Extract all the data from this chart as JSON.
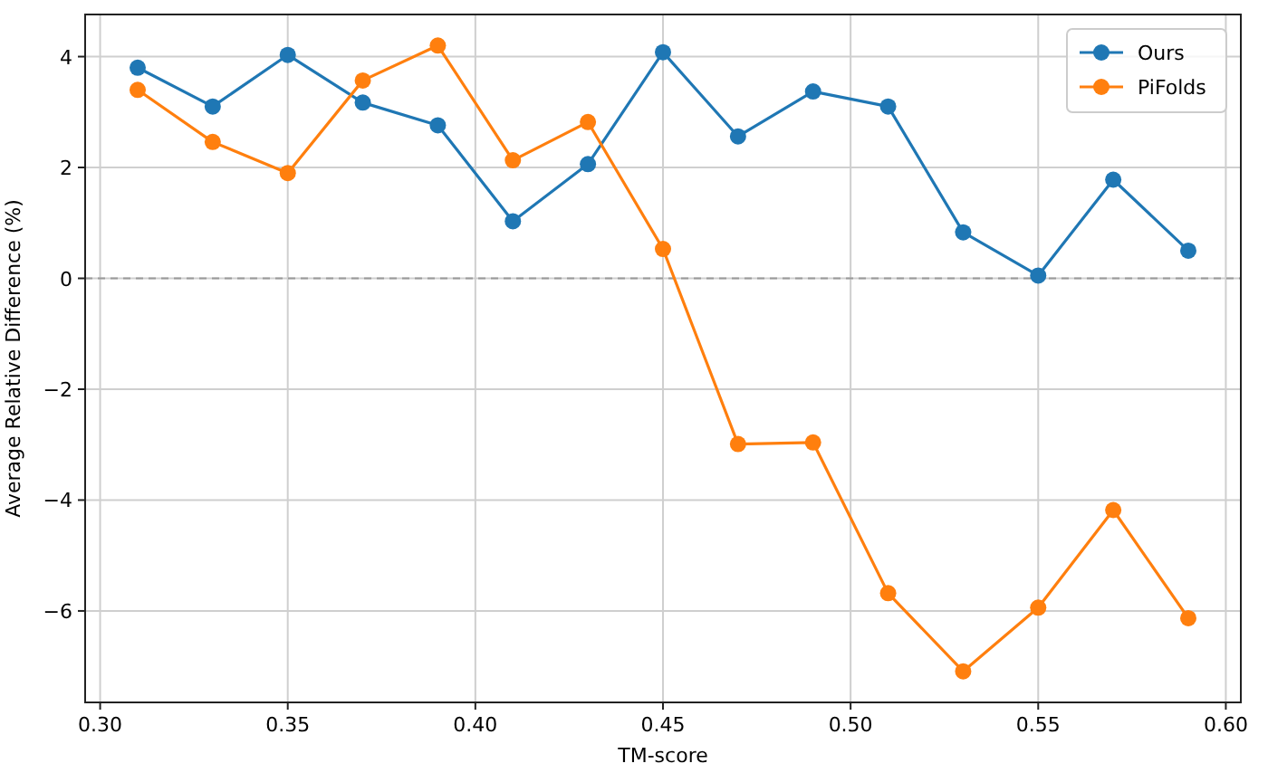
{
  "chart_data": {
    "type": "line",
    "xlabel": "TM-score",
    "ylabel": "Average Relative Difference (%)",
    "x": [
      0.31,
      0.33,
      0.35,
      0.37,
      0.39,
      0.41,
      0.43,
      0.45,
      0.47,
      0.49,
      0.51,
      0.53,
      0.55,
      0.57,
      0.59
    ],
    "series": [
      {
        "name": "Ours",
        "color": "#1f77b4",
        "values": [
          3.8,
          3.1,
          4.03,
          3.17,
          2.76,
          1.03,
          2.06,
          4.08,
          2.56,
          3.37,
          3.1,
          0.83,
          0.05,
          1.78,
          0.5
        ]
      },
      {
        "name": "PiFolds",
        "color": "#ff7f0e",
        "values": [
          3.4,
          2.46,
          1.9,
          3.57,
          4.2,
          2.13,
          2.82,
          0.53,
          -2.99,
          -2.96,
          -5.68,
          -7.09,
          -5.94,
          -4.18,
          -6.13
        ]
      }
    ],
    "xlim": [
      0.296,
      0.604
    ],
    "xticks": [
      {
        "value": 0.3,
        "label": "0.30"
      },
      {
        "value": 0.35,
        "label": "0.35"
      },
      {
        "value": 0.4,
        "label": "0.40"
      },
      {
        "value": 0.45,
        "label": "0.45"
      },
      {
        "value": 0.5,
        "label": "0.50"
      },
      {
        "value": 0.55,
        "label": "0.55"
      },
      {
        "value": 0.6,
        "label": "0.60"
      }
    ],
    "ylim": [
      -7.65,
      4.76
    ],
    "yticks": [
      {
        "value": -6,
        "label": "−6"
      },
      {
        "value": -4,
        "label": "−4"
      },
      {
        "value": -2,
        "label": "−2"
      },
      0,
      2,
      4
    ],
    "ref_lines": [
      {
        "axis": "y",
        "value": 0,
        "color": "#999999",
        "line_style": "dashed"
      }
    ],
    "grid": true,
    "legend": "top right",
    "marker": "circle",
    "line_style": "solid"
  }
}
